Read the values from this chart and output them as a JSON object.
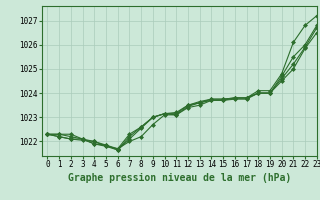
{
  "bg_color": "#cce8d8",
  "grid_color": "#aaccbb",
  "line_color": "#2d6e2d",
  "xlabel": "Graphe pression niveau de la mer (hPa)",
  "ylabel_ticks": [
    1022,
    1023,
    1024,
    1025,
    1026,
    1027
  ],
  "xlim": [
    -0.5,
    23
  ],
  "ylim": [
    1021.4,
    1027.6
  ],
  "series": [
    [
      1022.3,
      1022.3,
      1022.2,
      1022.1,
      1021.9,
      1021.85,
      1021.65,
      1022.1,
      1022.55,
      1023.0,
      1023.15,
      1023.1,
      1023.45,
      1023.6,
      1023.7,
      1023.7,
      1023.75,
      1023.75,
      1024.0,
      1024.0,
      1024.5,
      1025.0,
      1025.85,
      1026.5
    ],
    [
      1022.3,
      1022.2,
      1022.1,
      1022.05,
      1022.0,
      1021.8,
      1021.65,
      1022.2,
      1022.6,
      1023.0,
      1023.15,
      1023.15,
      1023.5,
      1023.6,
      1023.75,
      1023.75,
      1023.8,
      1023.8,
      1024.0,
      1024.0,
      1024.6,
      1025.2,
      1025.9,
      1026.7
    ],
    [
      1022.3,
      1022.2,
      1022.1,
      1022.1,
      1022.0,
      1021.85,
      1021.7,
      1022.3,
      1022.6,
      1023.0,
      1023.15,
      1023.2,
      1023.5,
      1023.65,
      1023.75,
      1023.75,
      1023.8,
      1023.8,
      1024.0,
      1024.0,
      1024.7,
      1025.5,
      1026.0,
      1026.8
    ],
    [
      1022.3,
      1022.3,
      1022.3,
      1022.1,
      1021.9,
      1021.8,
      1021.7,
      1022.0,
      1022.2,
      1022.7,
      1023.1,
      1023.1,
      1023.4,
      1023.5,
      1023.7,
      1023.7,
      1023.8,
      1023.8,
      1024.1,
      1024.1,
      1024.8,
      1026.1,
      1026.8,
      1027.2
    ]
  ],
  "marker": "D",
  "marker_size": 2.0,
  "linewidth": 0.8,
  "xlabel_fontsize": 7,
  "tick_fontsize": 5.5
}
